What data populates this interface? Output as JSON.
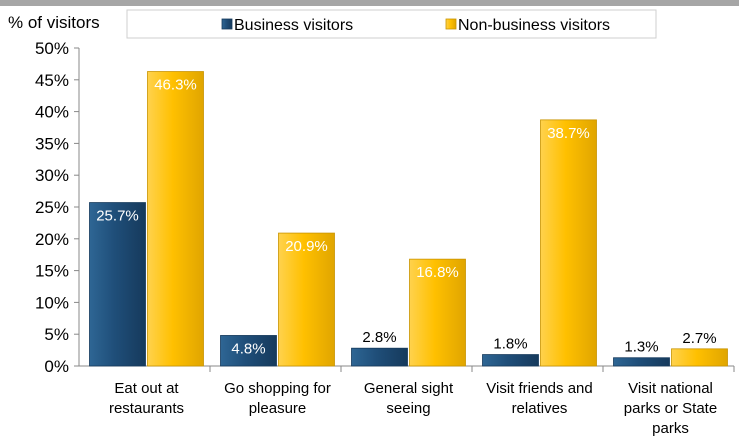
{
  "chart_data": {
    "type": "bar",
    "ylabel": "% of visitors",
    "ylim": [
      0,
      50
    ],
    "yticks": [
      "0%",
      "5%",
      "10%",
      "15%",
      "20%",
      "25%",
      "30%",
      "35%",
      "40%",
      "45%",
      "50%"
    ],
    "categories": [
      [
        "Eat out at",
        "restaurants"
      ],
      [
        "Go shopping for",
        "pleasure"
      ],
      [
        "General sight",
        "seeing"
      ],
      [
        "Visit friends and",
        "relatives"
      ],
      [
        "Visit national",
        "parks or State",
        "parks"
      ]
    ],
    "series": [
      {
        "name": "Business visitors",
        "color": "#1f4e79",
        "values": [
          25.7,
          4.8,
          2.8,
          1.8,
          1.3
        ],
        "labels": [
          "25.7%",
          "4.8%",
          "2.8%",
          "1.8%",
          "1.3%"
        ]
      },
      {
        "name": "Non-business visitors",
        "color": "#ffc000",
        "values": [
          46.3,
          20.9,
          16.8,
          38.7,
          2.7
        ],
        "labels": [
          "46.3%",
          "20.9%",
          "16.8%",
          "38.7%",
          "2.7%"
        ]
      }
    ],
    "grid": false,
    "legend": "top"
  }
}
